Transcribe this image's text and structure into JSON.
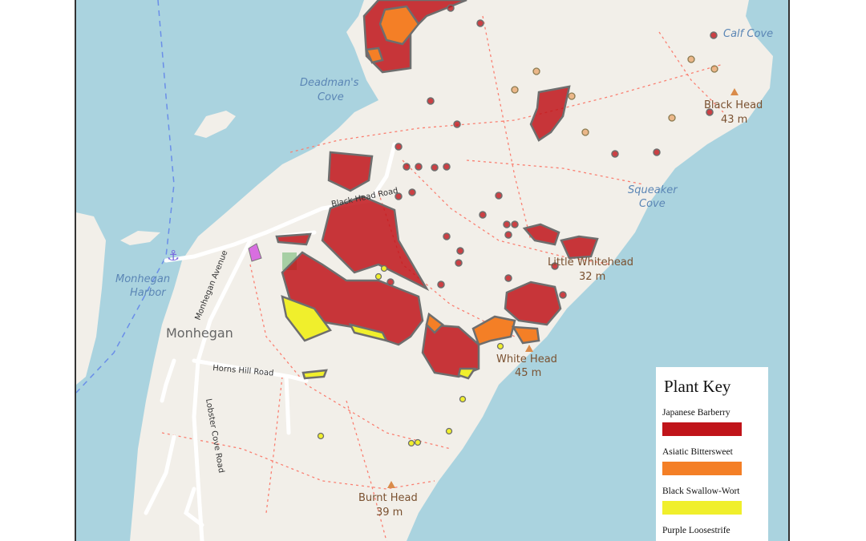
{
  "map": {
    "labels": {
      "calf_cove": "Calf Cove",
      "deadmans_cove_1": "Deadman's",
      "deadmans_cove_2": "Cove",
      "black_head": "Black Head",
      "black_head_elev": "43 m",
      "squeaker_cove_1": "Squeaker",
      "squeaker_cove_2": "Cove",
      "little_whitehead": "Little Whitehead",
      "little_whitehead_elev": "32 m",
      "white_head": "White Head",
      "white_head_elev": "45 m",
      "burnt_head": "Burnt Head",
      "burnt_head_elev": "39 m",
      "monhegan_harbor_1": "Monhegan",
      "monhegan_harbor_2": "Harbor",
      "monhegan": "Monhegan",
      "black_head_road": "Black Head Road",
      "monhegan_avenue": "Monhegan Avenue",
      "horns_hill_road": "Horns Hill Road",
      "lobster_cove_road": "Lobster Cove Road"
    },
    "colors": {
      "water": "#aad3df",
      "land": "#f2efe9",
      "trail": "#fa8072",
      "road": "#ffffff"
    }
  },
  "legend": {
    "title": "Plant Key",
    "items": [
      {
        "label": "Japanese Barberry",
        "color": "#c0141a"
      },
      {
        "label": "Asiatic Bittersweet",
        "color": "#f47f26"
      },
      {
        "label": "Black Swallow-Wort",
        "color": "#f0ef2c"
      },
      {
        "label": "Purple Loosestrife",
        "color": "#d86ee0"
      }
    ]
  }
}
